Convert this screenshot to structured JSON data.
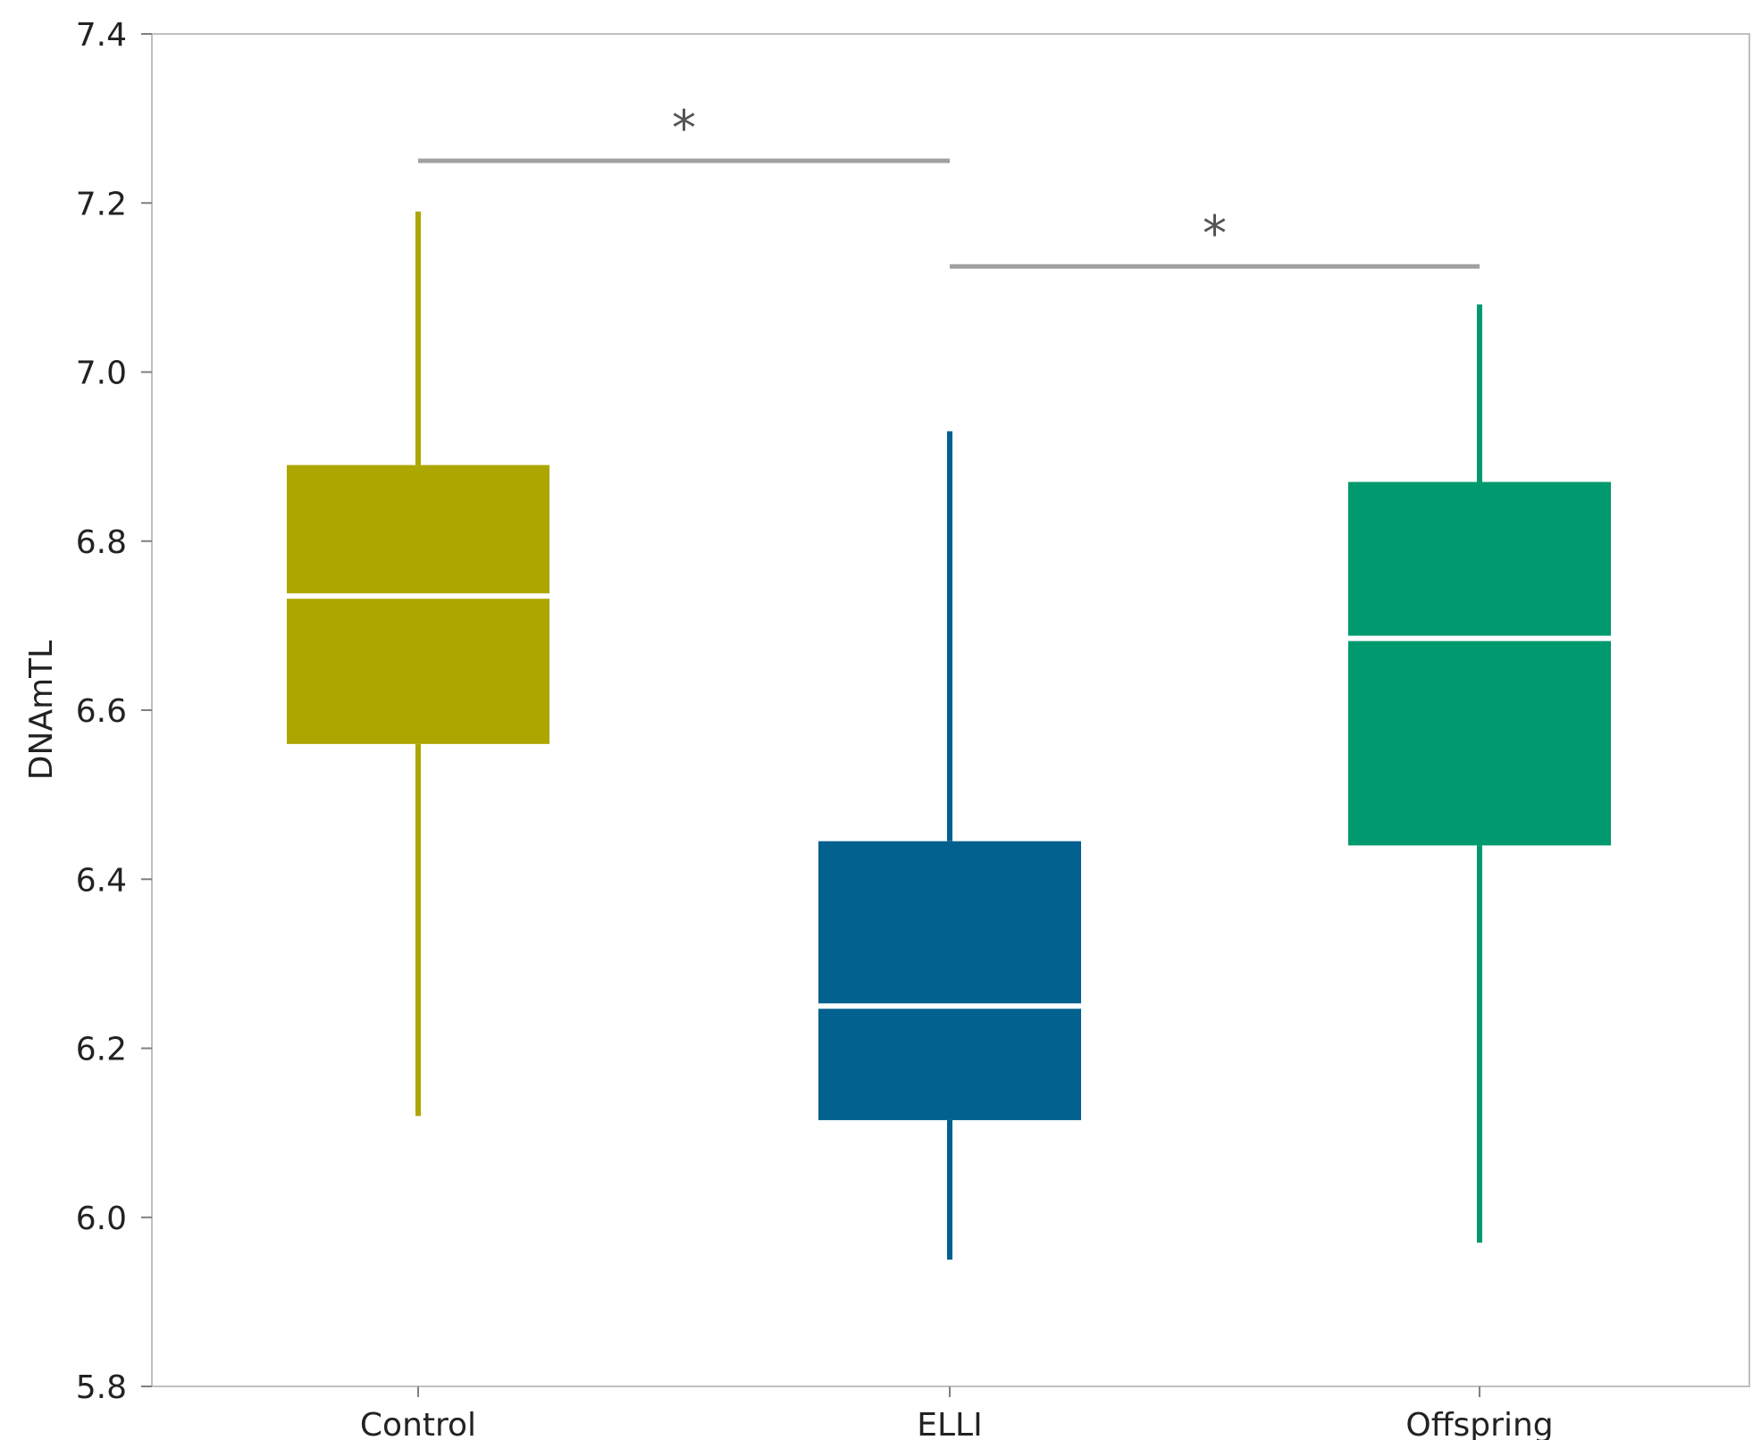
{
  "chart_data": {
    "type": "box",
    "ylabel": "DNAmTL",
    "ylim": [
      5.8,
      7.4
    ],
    "yticks": [
      5.8,
      6.0,
      6.2,
      6.4,
      6.6,
      6.8,
      7.0,
      7.2,
      7.4
    ],
    "ytick_labels": [
      "5.8",
      "6.0",
      "6.2",
      "6.4",
      "6.6",
      "6.8",
      "7.0",
      "7.2",
      "7.4"
    ],
    "categories": [
      "Control",
      "ELLI",
      "Offspring"
    ],
    "boxes": [
      {
        "category": "Control",
        "whisker_low": 6.12,
        "q1": 6.56,
        "median": 6.735,
        "q3": 6.89,
        "whisker_high": 7.19,
        "color": "#ADA600"
      },
      {
        "category": "ELLI",
        "whisker_low": 5.95,
        "q1": 6.115,
        "median": 6.25,
        "q3": 6.445,
        "whisker_high": 6.93,
        "color": "#02618E"
      },
      {
        "category": "Offspring",
        "whisker_low": 5.97,
        "q1": 6.44,
        "median": 6.685,
        "q3": 6.87,
        "whisker_high": 7.08,
        "color": "#009A6E"
      }
    ],
    "significance": [
      {
        "from": "Control",
        "to": "ELLI",
        "y": 7.25,
        "label": "*"
      },
      {
        "from": "ELLI",
        "to": "Offspring",
        "y": 7.125,
        "label": "*"
      }
    ],
    "grid": false,
    "legend": "none",
    "colors": {
      "frame": "#BFBFBF",
      "bracket": "#A0A0A0",
      "median_line": "#FFFFFF"
    }
  }
}
